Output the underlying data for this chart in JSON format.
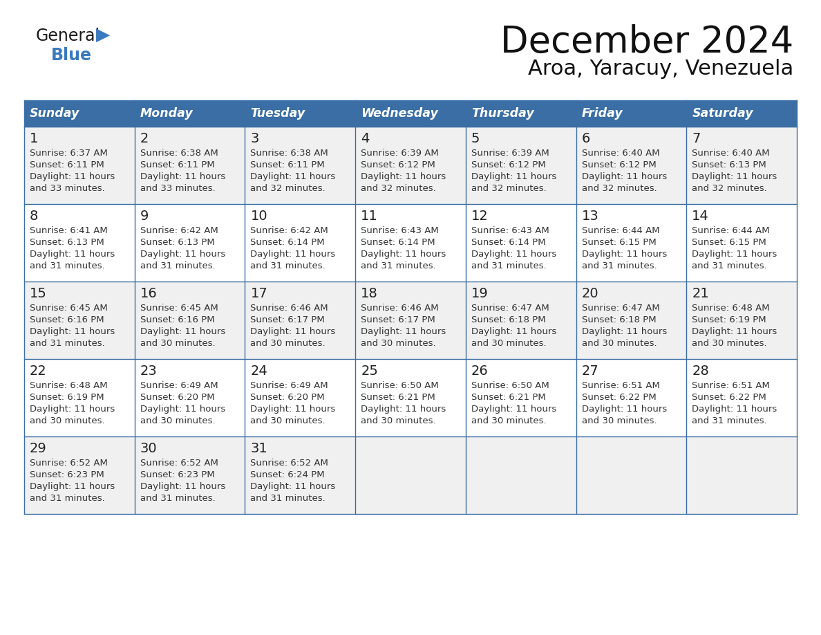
{
  "title": "December 2024",
  "subtitle": "Aroa, Yaracuy, Venezuela",
  "days_of_week": [
    "Sunday",
    "Monday",
    "Tuesday",
    "Wednesday",
    "Thursday",
    "Friday",
    "Saturday"
  ],
  "header_bg": "#3a6ea5",
  "header_text": "#ffffff",
  "row_bg_odd": "#f0f0f0",
  "row_bg_even": "#ffffff",
  "cell_border": "#3a6ea5",
  "day_num_color": "#222222",
  "info_color": "#333333",
  "calendar": [
    [
      {
        "day": 1,
        "sunrise": "6:37 AM",
        "sunset": "6:11 PM",
        "daylight": "11 hours and 33 minutes."
      },
      {
        "day": 2,
        "sunrise": "6:38 AM",
        "sunset": "6:11 PM",
        "daylight": "11 hours and 33 minutes."
      },
      {
        "day": 3,
        "sunrise": "6:38 AM",
        "sunset": "6:11 PM",
        "daylight": "11 hours and 32 minutes."
      },
      {
        "day": 4,
        "sunrise": "6:39 AM",
        "sunset": "6:12 PM",
        "daylight": "11 hours and 32 minutes."
      },
      {
        "day": 5,
        "sunrise": "6:39 AM",
        "sunset": "6:12 PM",
        "daylight": "11 hours and 32 minutes."
      },
      {
        "day": 6,
        "sunrise": "6:40 AM",
        "sunset": "6:12 PM",
        "daylight": "11 hours and 32 minutes."
      },
      {
        "day": 7,
        "sunrise": "6:40 AM",
        "sunset": "6:13 PM",
        "daylight": "11 hours and 32 minutes."
      }
    ],
    [
      {
        "day": 8,
        "sunrise": "6:41 AM",
        "sunset": "6:13 PM",
        "daylight": "11 hours and 31 minutes."
      },
      {
        "day": 9,
        "sunrise": "6:42 AM",
        "sunset": "6:13 PM",
        "daylight": "11 hours and 31 minutes."
      },
      {
        "day": 10,
        "sunrise": "6:42 AM",
        "sunset": "6:14 PM",
        "daylight": "11 hours and 31 minutes."
      },
      {
        "day": 11,
        "sunrise": "6:43 AM",
        "sunset": "6:14 PM",
        "daylight": "11 hours and 31 minutes."
      },
      {
        "day": 12,
        "sunrise": "6:43 AM",
        "sunset": "6:14 PM",
        "daylight": "11 hours and 31 minutes."
      },
      {
        "day": 13,
        "sunrise": "6:44 AM",
        "sunset": "6:15 PM",
        "daylight": "11 hours and 31 minutes."
      },
      {
        "day": 14,
        "sunrise": "6:44 AM",
        "sunset": "6:15 PM",
        "daylight": "11 hours and 31 minutes."
      }
    ],
    [
      {
        "day": 15,
        "sunrise": "6:45 AM",
        "sunset": "6:16 PM",
        "daylight": "11 hours and 31 minutes."
      },
      {
        "day": 16,
        "sunrise": "6:45 AM",
        "sunset": "6:16 PM",
        "daylight": "11 hours and 30 minutes."
      },
      {
        "day": 17,
        "sunrise": "6:46 AM",
        "sunset": "6:17 PM",
        "daylight": "11 hours and 30 minutes."
      },
      {
        "day": 18,
        "sunrise": "6:46 AM",
        "sunset": "6:17 PM",
        "daylight": "11 hours and 30 minutes."
      },
      {
        "day": 19,
        "sunrise": "6:47 AM",
        "sunset": "6:18 PM",
        "daylight": "11 hours and 30 minutes."
      },
      {
        "day": 20,
        "sunrise": "6:47 AM",
        "sunset": "6:18 PM",
        "daylight": "11 hours and 30 minutes."
      },
      {
        "day": 21,
        "sunrise": "6:48 AM",
        "sunset": "6:19 PM",
        "daylight": "11 hours and 30 minutes."
      }
    ],
    [
      {
        "day": 22,
        "sunrise": "6:48 AM",
        "sunset": "6:19 PM",
        "daylight": "11 hours and 30 minutes."
      },
      {
        "day": 23,
        "sunrise": "6:49 AM",
        "sunset": "6:20 PM",
        "daylight": "11 hours and 30 minutes."
      },
      {
        "day": 24,
        "sunrise": "6:49 AM",
        "sunset": "6:20 PM",
        "daylight": "11 hours and 30 minutes."
      },
      {
        "day": 25,
        "sunrise": "6:50 AM",
        "sunset": "6:21 PM",
        "daylight": "11 hours and 30 minutes."
      },
      {
        "day": 26,
        "sunrise": "6:50 AM",
        "sunset": "6:21 PM",
        "daylight": "11 hours and 30 minutes."
      },
      {
        "day": 27,
        "sunrise": "6:51 AM",
        "sunset": "6:22 PM",
        "daylight": "11 hours and 30 minutes."
      },
      {
        "day": 28,
        "sunrise": "6:51 AM",
        "sunset": "6:22 PM",
        "daylight": "11 hours and 31 minutes."
      }
    ],
    [
      {
        "day": 29,
        "sunrise": "6:52 AM",
        "sunset": "6:23 PM",
        "daylight": "11 hours and 31 minutes."
      },
      {
        "day": 30,
        "sunrise": "6:52 AM",
        "sunset": "6:23 PM",
        "daylight": "11 hours and 31 minutes."
      },
      {
        "day": 31,
        "sunrise": "6:52 AM",
        "sunset": "6:24 PM",
        "daylight": "11 hours and 31 minutes."
      },
      null,
      null,
      null,
      null
    ]
  ]
}
